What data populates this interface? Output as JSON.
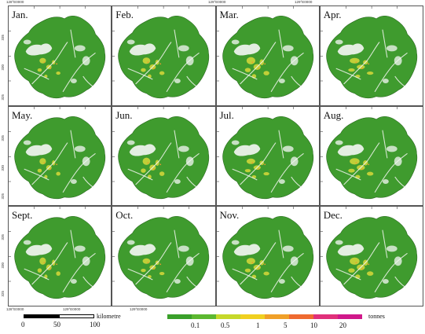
{
  "panels": [
    {
      "month": "Jan."
    },
    {
      "month": "Feb."
    },
    {
      "month": "Mar."
    },
    {
      "month": "Apr."
    },
    {
      "month": "May."
    },
    {
      "month": "Jun."
    },
    {
      "month": "Jul."
    },
    {
      "month": "Aug."
    },
    {
      "month": "Sept."
    },
    {
      "month": "Oct."
    },
    {
      "month": "Nov."
    },
    {
      "month": "Dec."
    }
  ],
  "coords": {
    "top": [
      "128°E0000",
      "129°E0000",
      "129°E0000"
    ],
    "bottom": [
      "128°E0000",
      "129°E0000",
      "129°E0000"
    ],
    "left_rows": [
      [
        "335",
        "330",
        "325"
      ],
      [
        "335",
        "330",
        "325"
      ],
      [
        "335",
        "330",
        "325"
      ]
    ]
  },
  "scale_bar": {
    "labels": [
      "0",
      "50",
      "100"
    ],
    "unit": "kilometre"
  },
  "legend": {
    "labels": [
      "0.1",
      "0.5",
      "1",
      "5",
      "10",
      "20"
    ],
    "unit": "tonnes",
    "colors": [
      "#3aa02a",
      "#5cb830",
      "#c6d82a",
      "#f0d020",
      "#f0a028",
      "#ef6a30",
      "#e0307a",
      "#d0188a"
    ]
  },
  "colors": {
    "land_green": "#3f9b2e",
    "hotspot_yellow": "#d8d83a",
    "hotspot_orange": "#e89a2e",
    "snow_white": "#f5f7f5"
  }
}
